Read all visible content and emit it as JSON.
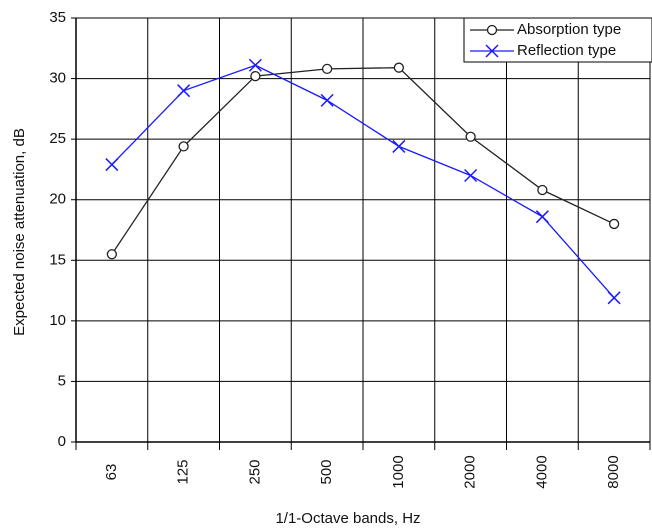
{
  "chart_data": {
    "type": "line",
    "x_label": "1/1-Octave bands, Hz",
    "y_label": "Expected noise attenuation, dB",
    "categories": [
      "63",
      "125",
      "250",
      "500",
      "1000",
      "2000",
      "4000",
      "8000"
    ],
    "series": [
      {
        "name": "Absorption type",
        "color": "#222222",
        "marker": "circle",
        "values": [
          15.5,
          24.4,
          30.2,
          30.8,
          30.9,
          25.2,
          20.8,
          18.0
        ]
      },
      {
        "name": "Reflection type",
        "color": "#1a1aff",
        "marker": "x",
        "values": [
          22.9,
          29.0,
          31.1,
          28.2,
          24.4,
          22.0,
          18.6,
          11.9
        ]
      }
    ],
    "ylim": [
      0,
      35
    ],
    "yticks": [
      0,
      5,
      10,
      15,
      20,
      25,
      30,
      35
    ],
    "grid": true,
    "legend": "upper right"
  }
}
